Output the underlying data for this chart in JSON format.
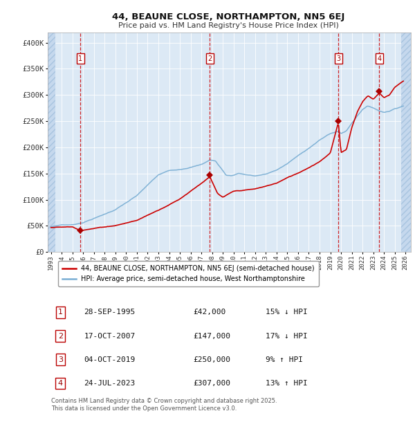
{
  "title": "44, BEAUNE CLOSE, NORTHAMPTON, NN5 6EJ",
  "subtitle": "Price paid vs. HM Land Registry's House Price Index (HPI)",
  "bg_color": "#dce9f5",
  "hatch_color": "#c5d8ed",
  "grid_color": "#ffffff",
  "transactions": [
    {
      "num": 1,
      "date": "28-SEP-1995",
      "price": 42000,
      "pct": "15%",
      "dir": "↓",
      "x_year": 1995.73
    },
    {
      "num": 2,
      "date": "17-OCT-2007",
      "price": 147000,
      "pct": "17%",
      "dir": "↓",
      "x_year": 2007.79
    },
    {
      "num": 3,
      "date": "04-OCT-2019",
      "price": 250000,
      "pct": "9%",
      "dir": "↑",
      "x_year": 2019.75
    },
    {
      "num": 4,
      "date": "24-JUL-2023",
      "price": 307000,
      "pct": "13%",
      "dir": "↑",
      "x_year": 2023.56
    }
  ],
  "legend_line1": "44, BEAUNE CLOSE, NORTHAMPTON, NN5 6EJ (semi-detached house)",
  "legend_line2": "HPI: Average price, semi-detached house, West Northamptonshire",
  "footer": "Contains HM Land Registry data © Crown copyright and database right 2025.\nThis data is licensed under the Open Government Licence v3.0.",
  "red_line_color": "#cc0000",
  "blue_line_color": "#7bafd4",
  "ylim": [
    0,
    420000
  ],
  "yticks": [
    0,
    50000,
    100000,
    150000,
    200000,
    250000,
    300000,
    350000,
    400000
  ],
  "ytick_labels": [
    "£0",
    "£50K",
    "£100K",
    "£150K",
    "£200K",
    "£250K",
    "£300K",
    "£350K",
    "£400K"
  ],
  "xlim_start": 1992.7,
  "xlim_end": 2026.5,
  "hatch_left_end": 1993.4,
  "hatch_right_start": 2025.6,
  "xtick_years": [
    1993,
    1994,
    1995,
    1996,
    1997,
    1998,
    1999,
    2000,
    2001,
    2002,
    2003,
    2004,
    2005,
    2006,
    2007,
    2008,
    2009,
    2010,
    2011,
    2012,
    2013,
    2014,
    2015,
    2016,
    2017,
    2018,
    2019,
    2020,
    2021,
    2022,
    2023,
    2024,
    2025,
    2026
  ]
}
